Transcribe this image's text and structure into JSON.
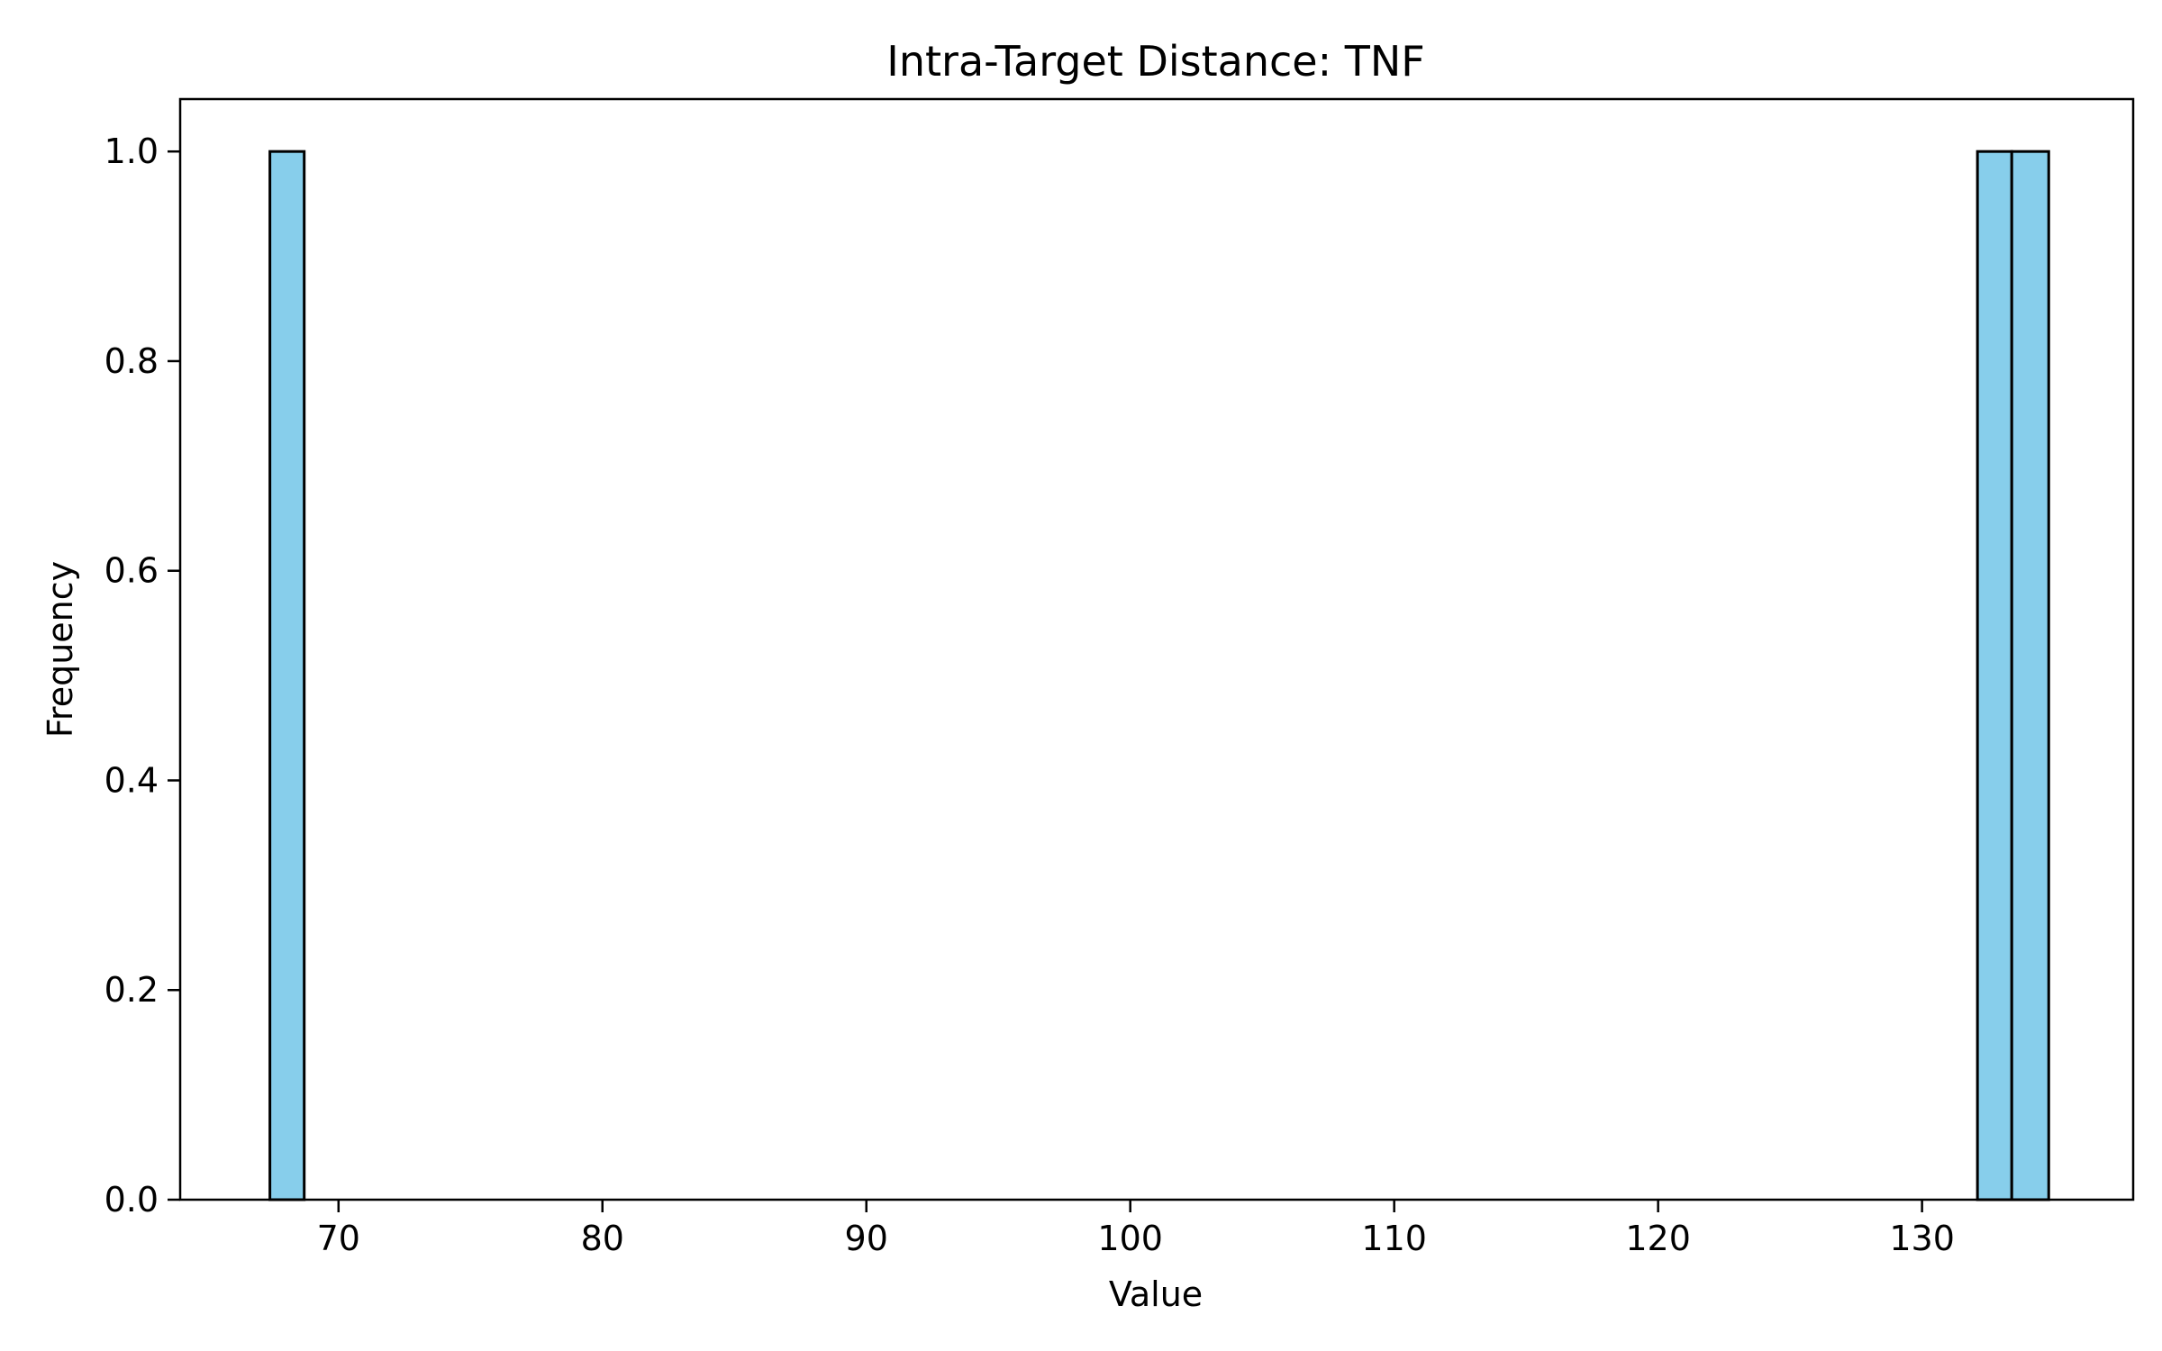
{
  "chart_data": {
    "type": "bar",
    "title": "Intra-Target Distance: TNF",
    "xlabel": "Value",
    "ylabel": "Frequency",
    "xlim": [
      64,
      138
    ],
    "ylim": [
      0,
      1.05
    ],
    "xticks": [
      70,
      80,
      90,
      100,
      110,
      120,
      130
    ],
    "xtick_labels": [
      "70",
      "80",
      "90",
      "100",
      "110",
      "120",
      "130"
    ],
    "yticks": [
      0.0,
      0.2,
      0.4,
      0.6,
      0.8,
      1.0
    ],
    "ytick_labels": [
      "0.0",
      "0.2",
      "0.4",
      "0.6",
      "0.8",
      "1.0"
    ],
    "bins": [
      {
        "start": 67.4,
        "end": 68.7,
        "count": 1
      },
      {
        "start": 132.1,
        "end": 133.4,
        "count": 1
      },
      {
        "start": 133.4,
        "end": 134.8,
        "count": 1
      }
    ],
    "grid": false,
    "bar_color": "#87ceeb",
    "edge_color": "#000000"
  }
}
